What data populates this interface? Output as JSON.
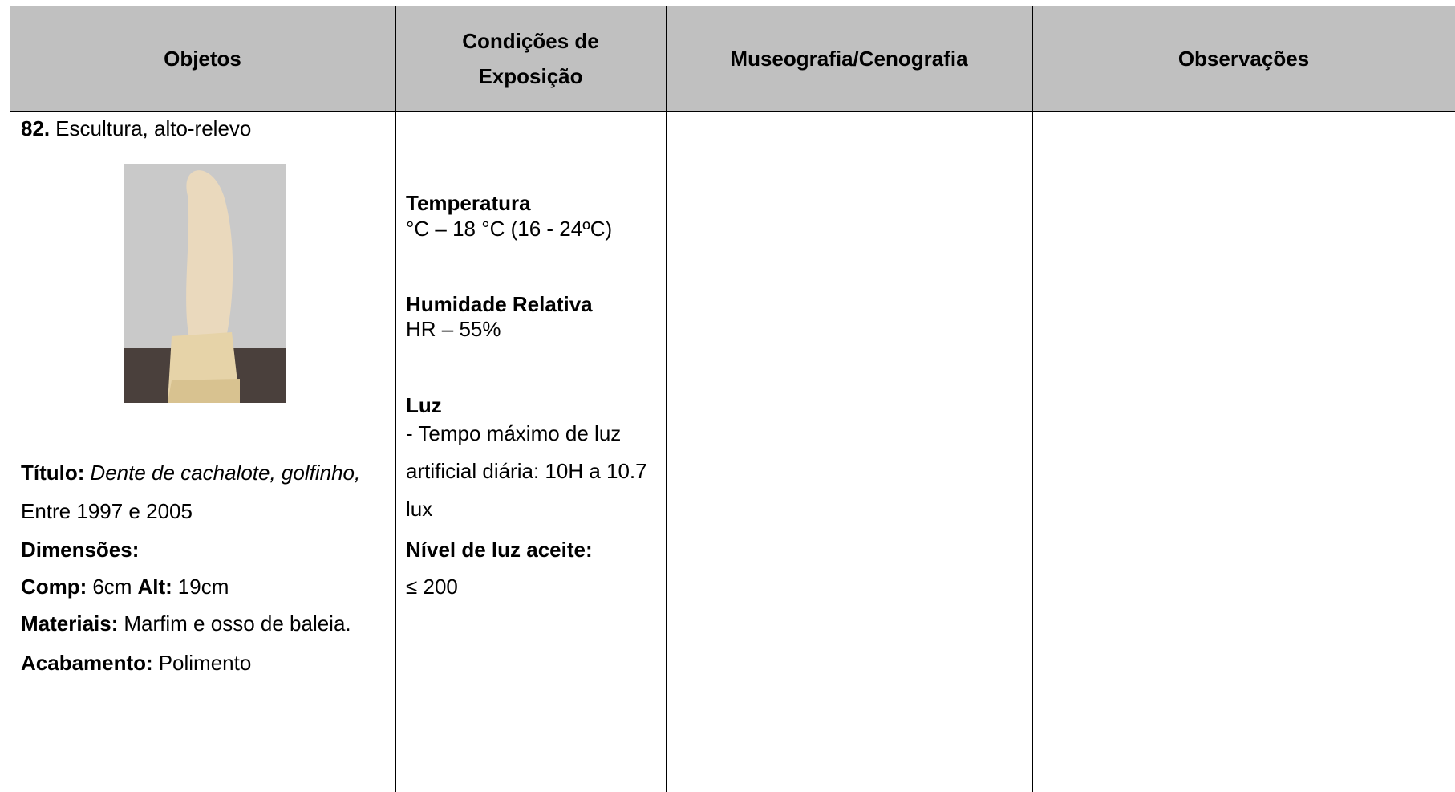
{
  "table": {
    "headers": [
      "Objetos",
      "Condições de Exposição",
      "Museografia/Cenografia",
      "Observações"
    ],
    "object": {
      "number": "82.",
      "name": "Escultura, alto-relevo",
      "title_label": "Título:",
      "title": "Dente de cachalote, golfinho,",
      "date": "Entre 1997 e 2005",
      "dimensions_label": "Dimensões:",
      "length_label": "Comp:",
      "length": "6cm",
      "height_label": "Alt:",
      "height": "19cm",
      "materials_label": "Materiais:",
      "materials": "Marfim e osso de baleia.",
      "finish_label": "Acabamento:",
      "finish": "Polimento"
    },
    "conditions": {
      "temperature_label": "Temperatura",
      "temperature": "°C – 18 °C (16 - 24ºC)",
      "humidity_label": "Humidade Relativa",
      "humidity": "HR – 55%",
      "light_label": "Luz",
      "light_lines": [
        "- Tempo máximo de luz",
        "artificial diária: 10H a 10.7",
        "lux"
      ],
      "light_level_label": "Nível de luz aceite:",
      "light_level": "≤ 200"
    }
  }
}
